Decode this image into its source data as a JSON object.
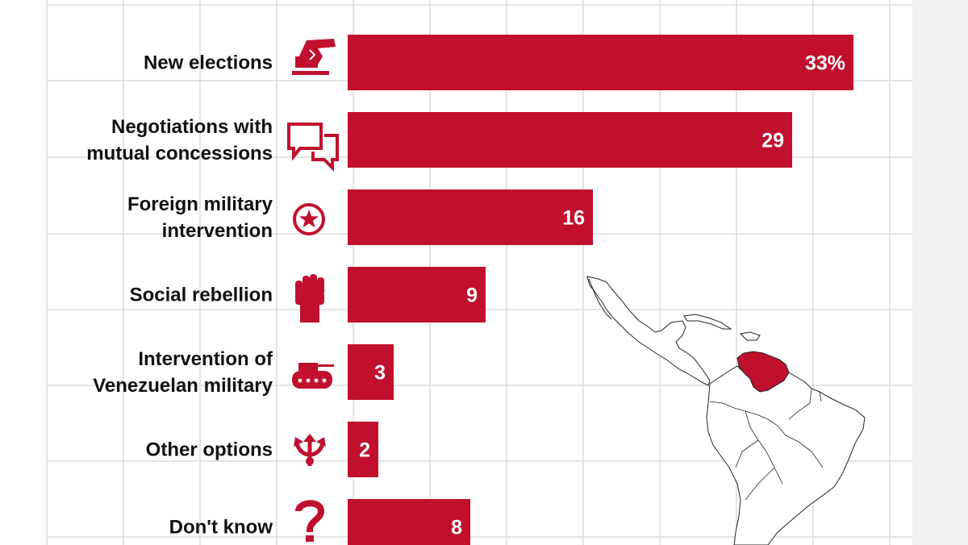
{
  "colors": {
    "accent": "#c0102e",
    "grid": "#dcdcdc",
    "text": "#111111",
    "map_stroke": "#222222"
  },
  "chart_data": {
    "type": "bar",
    "orientation": "horizontal",
    "categories": [
      "New elections",
      "Negotiations with mutual concessions",
      "Foreign military intervention",
      "Social rebellion",
      "Intervention of Venezuelan military",
      "Other options",
      "Don't know"
    ],
    "label_lines": [
      [
        "New elections"
      ],
      [
        "Negotiations with",
        "mutual concessions"
      ],
      [
        "Foreign military",
        "intervention"
      ],
      [
        "Social rebellion"
      ],
      [
        "Intervention of",
        "Venezuelan military"
      ],
      [
        "Other options"
      ],
      [
        "Don't know"
      ]
    ],
    "values": [
      33,
      29,
      16,
      9,
      3,
      2,
      8
    ],
    "value_labels": [
      "33%",
      "29",
      "16",
      "9",
      "3",
      "2",
      "8"
    ],
    "icons": [
      "ballot-box-icon",
      "chat-bubbles-icon",
      "star-circle-icon",
      "raised-fist-icon",
      "tank-icon",
      "split-arrows-icon",
      "question-mark-icon"
    ],
    "unit": "%",
    "xlim": [
      0,
      35
    ],
    "grid": true,
    "map": "latin-america-venezuela-highlighted"
  }
}
